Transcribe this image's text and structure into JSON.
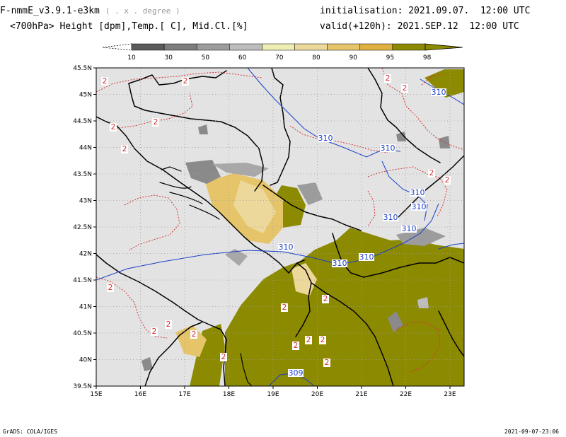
{
  "header": {
    "title": "F-nmmE_v3.9.1-e3km",
    "units_note": "( . x . degree )",
    "subtitle": "<700hPa> Height [dpm],Temp.[ C], Mid.Cl.[%]",
    "initialisation": "initialisation: 2021.09.07.  12:00 UTC",
    "valid": "valid(+120h): 2021.SEP.12  12:00 UTC"
  },
  "colorbar": {
    "labels": [
      "10",
      "30",
      "50",
      "60",
      "70",
      "80",
      "90",
      "95",
      "98"
    ],
    "colors": [
      "#5a5a5a",
      "#7d7d7d",
      "#9c9c9c",
      "#bdbdbd",
      "#eeeeb4",
      "#ecd89a",
      "#e6c46a",
      "#e0b040",
      "#8c8a00"
    ]
  },
  "map": {
    "lon_labels": [
      "15E",
      "16E",
      "17E",
      "18E",
      "19E",
      "20E",
      "21E",
      "22E",
      "23E"
    ],
    "lat_labels": [
      "45.5N",
      "45N",
      "44.5N",
      "44N",
      "43.5N",
      "43N",
      "42.5N",
      "42N",
      "41.5N",
      "41N",
      "40.5N",
      "40N",
      "39.5N"
    ],
    "height_contour_labels": [
      "310",
      "310",
      "310",
      "310",
      "310",
      "310",
      "310",
      "310",
      "310",
      "310",
      "309"
    ],
    "temp_contour_labels": [
      "2",
      "2",
      "2",
      "2",
      "2",
      "2",
      "2",
      "2",
      "2",
      "2",
      "2",
      "2",
      "2",
      "2",
      "2",
      "2",
      "2",
      "2",
      "2",
      "2"
    ],
    "colors": {
      "background": "#e3e3e3",
      "cloud_olive": "#8c8a00",
      "temp_contour": "#d43232",
      "height_contour": "#1a3fc9",
      "grid": "#a0a0a0"
    }
  },
  "footer": {
    "left": "GrADS: COLA/IGES",
    "right": "2021-09-07-23:06"
  }
}
